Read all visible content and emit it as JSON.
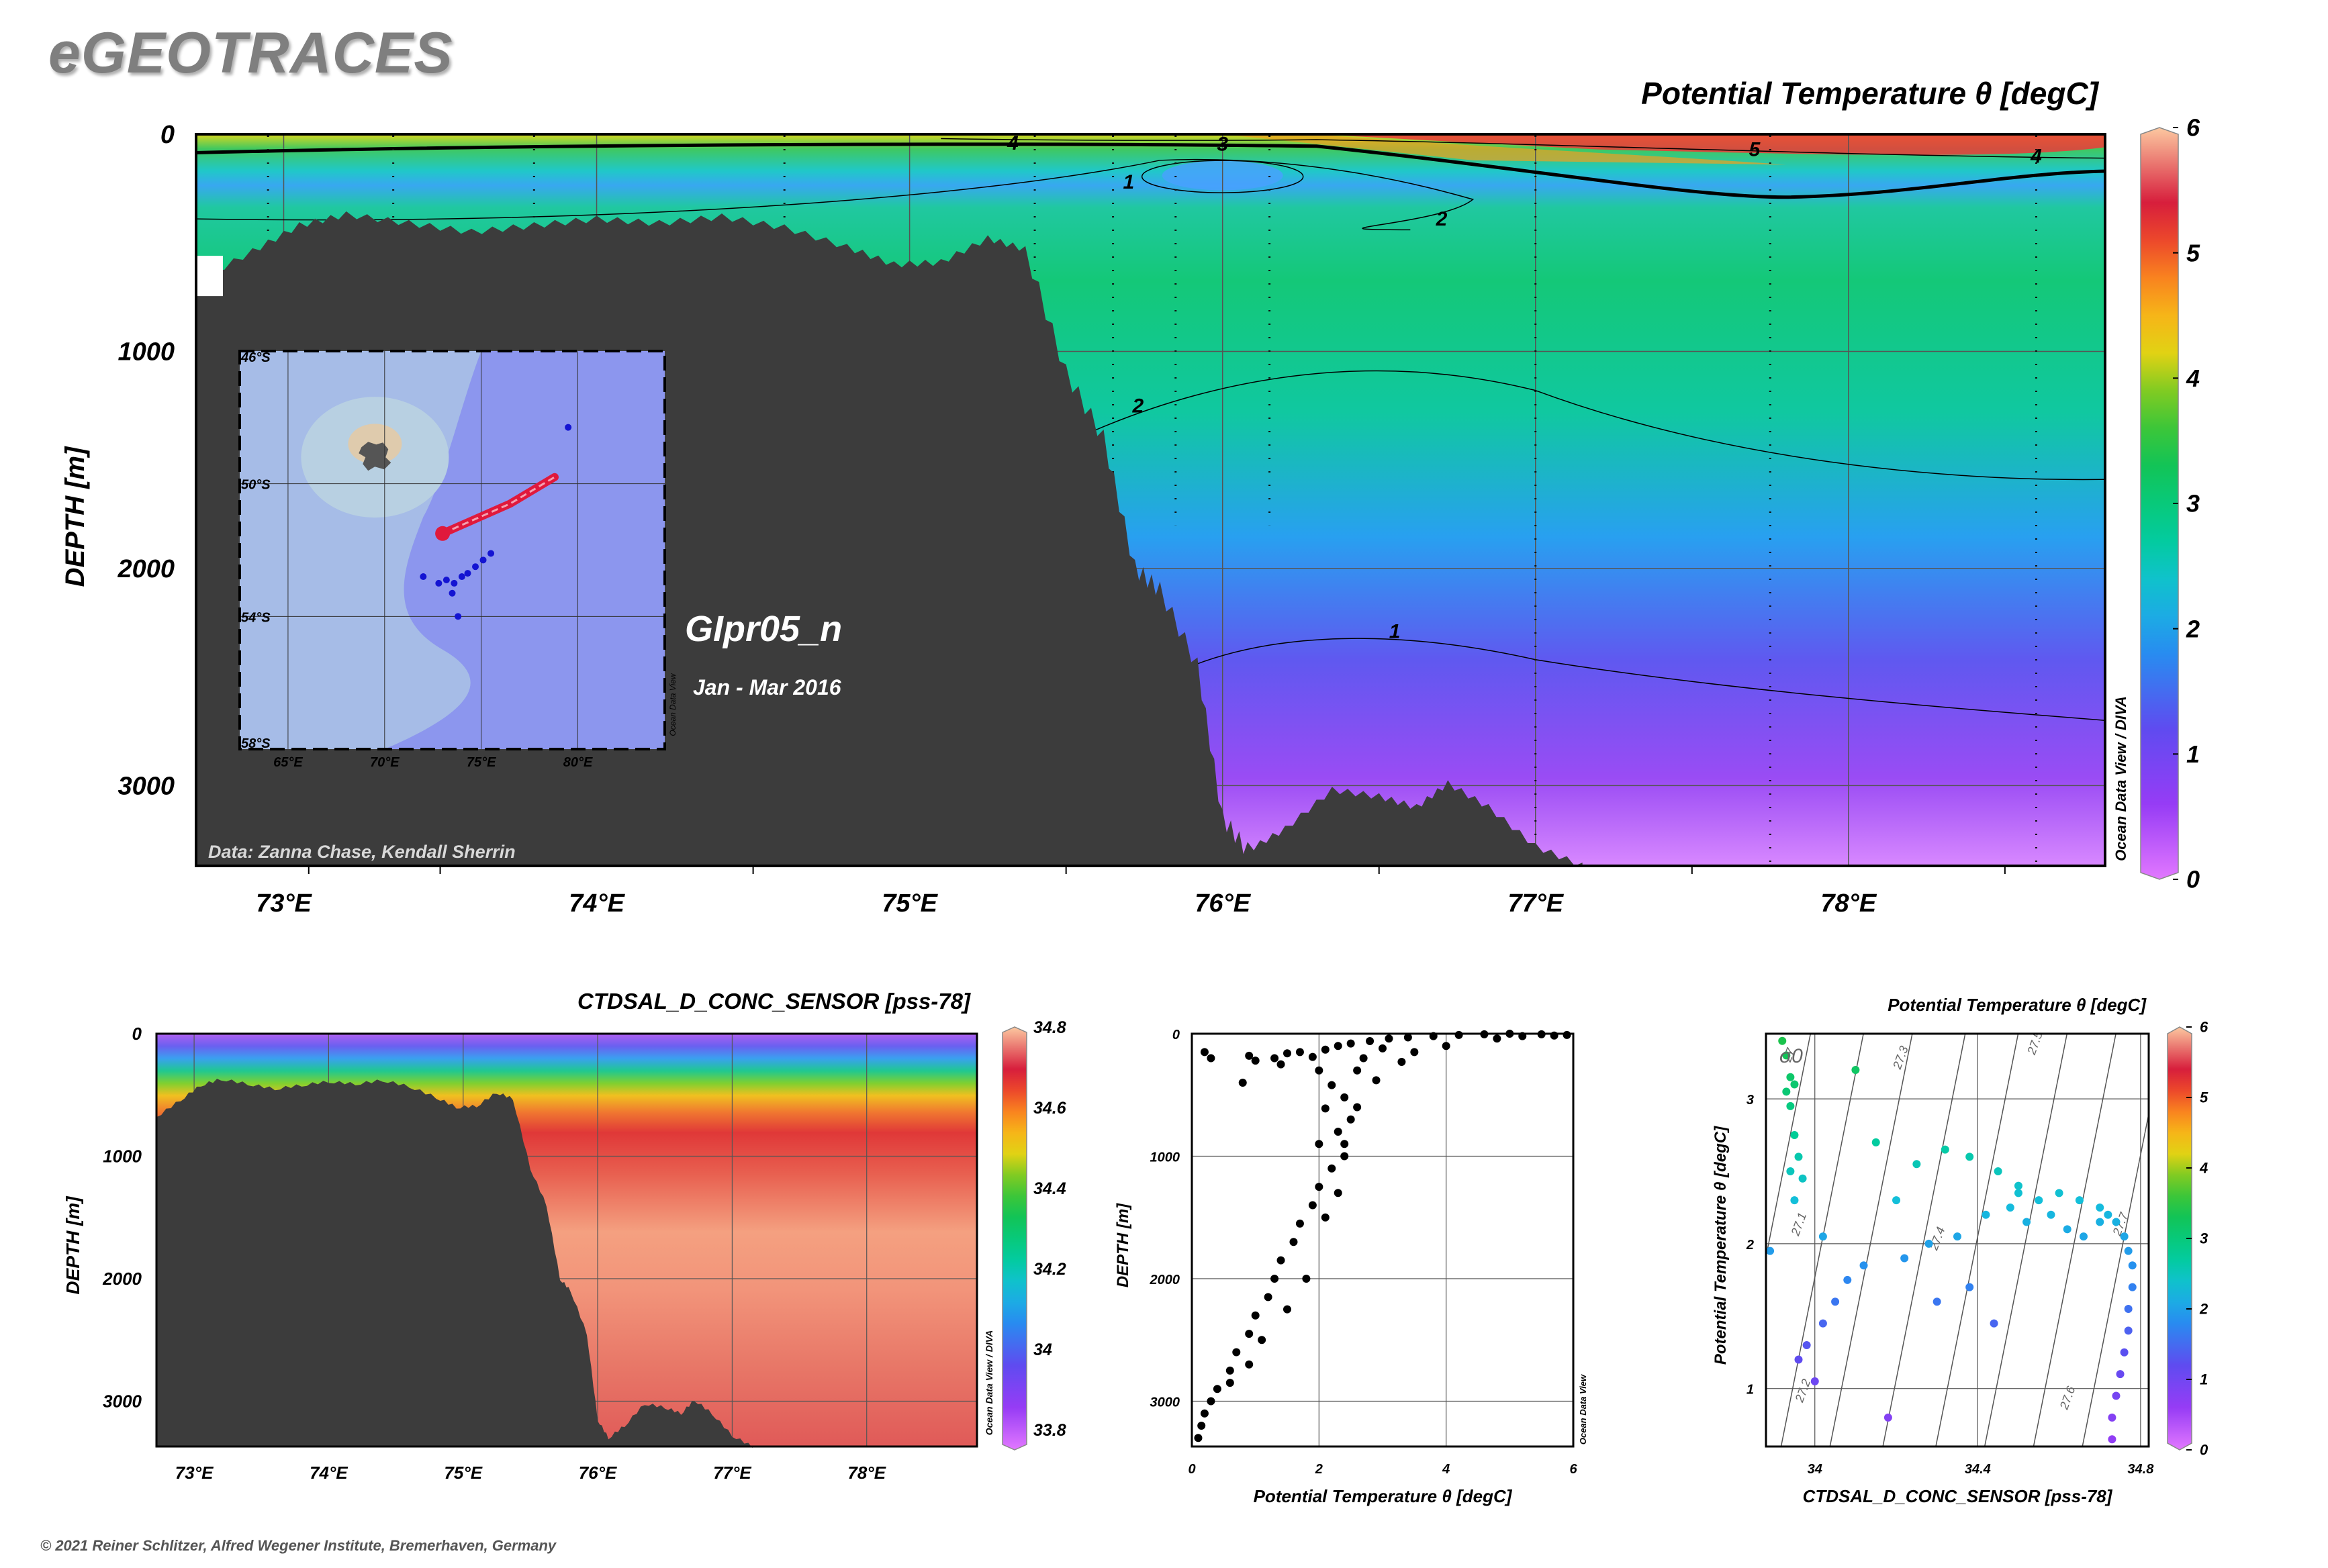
{
  "brand": "eGEOTRACES",
  "copyright": "© 2021 Reiner Schlitzer, Alfred Wegener Institute, Bremerhaven, Germany",
  "colors": {
    "seafloor": "#3c3c3c",
    "section_line": "#e0193c",
    "stations": "#1414d2",
    "map_ocean": "#8c96ee"
  },
  "chart_data": [
    {
      "type": "heatmap",
      "title": "Potential Temperature θ [degC]",
      "ylabel": "DEPTH [m]",
      "xlabel": "",
      "x_ticks": [
        "73°E",
        "74°E",
        "75°E",
        "76°E",
        "77°E",
        "78°E"
      ],
      "x_tick_values": [
        73,
        74,
        75,
        76,
        77,
        78
      ],
      "xlim": [
        72.72,
        78.82
      ],
      "y_ticks": [
        "0",
        "1000",
        "2000",
        "3000"
      ],
      "y_tick_values": [
        0,
        1000,
        2000,
        3000
      ],
      "ylim": [
        3370,
        0
      ],
      "colorbar": {
        "ticks": [
          "0",
          "1",
          "2",
          "3",
          "4",
          "5",
          "6"
        ],
        "values": [
          0,
          1,
          2,
          3,
          4,
          5,
          6
        ],
        "range": [
          0,
          6
        ]
      },
      "contour_labels": [
        "4",
        "3",
        "1",
        "2",
        "2",
        "1",
        "5",
        "4"
      ],
      "annotation_section": "GIpr05_n",
      "annotation_period": "Jan - Mar 2016",
      "data_credit": "Data: Zanna Chase, Kendall Sherrin",
      "side_label": "Ocean Data View / DIVA",
      "station_longitudes": [
        72.95,
        73.35,
        73.8,
        74.6,
        75.4,
        75.65,
        75.85,
        76.15,
        77.0,
        77.75,
        78.6
      ],
      "bathymetry": [
        [
          72.72,
          680
        ],
        [
          72.9,
          540
        ],
        [
          73.05,
          420
        ],
        [
          73.2,
          370
        ],
        [
          73.4,
          410
        ],
        [
          73.6,
          450
        ],
        [
          73.8,
          420
        ],
        [
          74.0,
          390
        ],
        [
          74.2,
          410
        ],
        [
          74.4,
          380
        ],
        [
          74.6,
          430
        ],
        [
          74.8,
          520
        ],
        [
          74.95,
          600
        ],
        [
          75.1,
          590
        ],
        [
          75.25,
          480
        ],
        [
          75.37,
          530
        ],
        [
          75.5,
          1100
        ],
        [
          75.62,
          1400
        ],
        [
          75.72,
          2000
        ],
        [
          75.8,
          2100
        ],
        [
          75.92,
          2450
        ],
        [
          76.0,
          3150
        ],
        [
          76.08,
          3300
        ],
        [
          76.2,
          3200
        ],
        [
          76.35,
          3020
        ],
        [
          76.5,
          3050
        ],
        [
          76.62,
          3100
        ],
        [
          76.72,
          2990
        ],
        [
          76.85,
          3100
        ],
        [
          77.0,
          3280
        ],
        [
          77.15,
          3370
        ]
      ]
    },
    {
      "type": "heatmap",
      "title": "CTDSAL_D_CONC_SENSOR [pss-78]",
      "ylabel": "DEPTH [m]",
      "xlabel": "",
      "x_ticks": [
        "73°E",
        "74°E",
        "75°E",
        "76°E",
        "77°E",
        "78°E"
      ],
      "x_tick_values": [
        73,
        74,
        75,
        76,
        77,
        78
      ],
      "xlim": [
        72.72,
        78.82
      ],
      "y_ticks": [
        "0",
        "1000",
        "2000",
        "3000"
      ],
      "y_tick_values": [
        0,
        1000,
        2000,
        3000
      ],
      "ylim": [
        3370,
        0
      ],
      "colorbar": {
        "ticks": [
          "33.8",
          "34",
          "34.2",
          "34.4",
          "34.6",
          "34.8"
        ],
        "values": [
          33.8,
          34.0,
          34.2,
          34.4,
          34.6,
          34.8
        ],
        "range": [
          33.75,
          34.8
        ]
      },
      "side_label": "Ocean Data View / DIVA"
    },
    {
      "type": "scatter",
      "xlabel": "Potential Temperature θ [degC]",
      "ylabel": "DEPTH [m]",
      "x_ticks": [
        "0",
        "2",
        "4",
        "6"
      ],
      "x_tick_values": [
        0,
        2,
        4,
        6
      ],
      "xlim": [
        0,
        6
      ],
      "y_ticks": [
        "0",
        "1000",
        "2000",
        "3000"
      ],
      "y_tick_values": [
        0,
        1000,
        2000,
        3000
      ],
      "ylim": [
        3370,
        0
      ],
      "side_label": "Ocean Data View",
      "points": [
        [
          0.2,
          150
        ],
        [
          0.3,
          200
        ],
        [
          0.9,
          180
        ],
        [
          1.0,
          220
        ],
        [
          1.3,
          200
        ],
        [
          1.5,
          160
        ],
        [
          1.7,
          150
        ],
        [
          1.9,
          190
        ],
        [
          2.1,
          130
        ],
        [
          2.3,
          100
        ],
        [
          2.5,
          80
        ],
        [
          2.8,
          60
        ],
        [
          3.1,
          40
        ],
        [
          3.4,
          30
        ],
        [
          3.8,
          20
        ],
        [
          4.2,
          10
        ],
        [
          4.6,
          5
        ],
        [
          5.0,
          0
        ],
        [
          5.5,
          5
        ],
        [
          5.9,
          10
        ],
        [
          3.0,
          120
        ],
        [
          3.3,
          230
        ],
        [
          2.9,
          380
        ],
        [
          2.6,
          300
        ],
        [
          2.2,
          420
        ],
        [
          2.4,
          520
        ],
        [
          2.1,
          610
        ],
        [
          2.5,
          700
        ],
        [
          2.3,
          800
        ],
        [
          2.0,
          900
        ],
        [
          2.4,
          1000
        ],
        [
          2.2,
          1100
        ],
        [
          2.0,
          1250
        ],
        [
          1.9,
          1400
        ],
        [
          1.7,
          1550
        ],
        [
          1.6,
          1700
        ],
        [
          1.4,
          1850
        ],
        [
          1.3,
          2000
        ],
        [
          1.2,
          2150
        ],
        [
          1.0,
          2300
        ],
        [
          0.9,
          2450
        ],
        [
          0.7,
          2600
        ],
        [
          0.6,
          2750
        ],
        [
          0.4,
          2900
        ],
        [
          0.3,
          3000
        ],
        [
          0.2,
          3100
        ],
        [
          0.15,
          3200
        ],
        [
          0.1,
          3300
        ],
        [
          0.6,
          2850
        ],
        [
          0.9,
          2700
        ],
        [
          1.1,
          2500
        ],
        [
          1.5,
          2250
        ],
        [
          1.8,
          2000
        ],
        [
          2.1,
          1500
        ],
        [
          2.3,
          1300
        ],
        [
          2.4,
          900
        ],
        [
          2.6,
          600
        ],
        [
          2.0,
          300
        ],
        [
          1.4,
          250
        ],
        [
          0.8,
          400
        ],
        [
          2.7,
          200
        ],
        [
          3.5,
          150
        ],
        [
          4.0,
          100
        ],
        [
          4.8,
          40
        ],
        [
          5.2,
          20
        ],
        [
          5.7,
          15
        ]
      ]
    },
    {
      "type": "scatter",
      "title": "Potential Temperature θ [degC]",
      "xlabel": "CTDSAL_D_CONC_SENSOR [pss-78]",
      "ylabel": "Potential Temperature θ [degC]",
      "x_ticks": [
        "34",
        "34.4",
        "34.8"
      ],
      "x_tick_values": [
        34.0,
        34.4,
        34.8
      ],
      "xlim": [
        33.88,
        34.82
      ],
      "y_ticks": [
        "1",
        "2",
        "3"
      ],
      "y_tick_values": [
        1,
        2,
        3
      ],
      "ylim": [
        0.6,
        3.45
      ],
      "density_label": "σ0",
      "isopycnal_labels": [
        "27",
        "27.1",
        "27.2",
        "27.3",
        "27.4",
        "27.5",
        "27.6",
        "27.7"
      ],
      "colorbar": {
        "ticks": [
          "0",
          "1",
          "2",
          "3",
          "4",
          "5",
          "6"
        ],
        "values": [
          0,
          1,
          2,
          3,
          4,
          5,
          6
        ],
        "range": [
          0,
          6
        ]
      },
      "points": [
        [
          33.92,
          3.4
        ],
        [
          33.93,
          3.3
        ],
        [
          33.94,
          3.15
        ],
        [
          33.95,
          3.1
        ],
        [
          33.93,
          3.05
        ],
        [
          33.94,
          2.95
        ],
        [
          33.95,
          2.75
        ],
        [
          33.96,
          2.6
        ],
        [
          33.94,
          2.5
        ],
        [
          33.97,
          2.45
        ],
        [
          33.95,
          2.3
        ],
        [
          34.1,
          3.2
        ],
        [
          34.15,
          2.7
        ],
        [
          34.25,
          2.55
        ],
        [
          34.32,
          2.65
        ],
        [
          34.38,
          2.6
        ],
        [
          34.45,
          2.5
        ],
        [
          34.5,
          2.35
        ],
        [
          34.55,
          2.3
        ],
        [
          34.6,
          2.35
        ],
        [
          34.65,
          2.3
        ],
        [
          34.7,
          2.25
        ],
        [
          34.72,
          2.2
        ],
        [
          34.74,
          2.15
        ],
        [
          34.76,
          2.05
        ],
        [
          34.77,
          1.95
        ],
        [
          34.78,
          1.85
        ],
        [
          34.78,
          1.7
        ],
        [
          34.77,
          1.55
        ],
        [
          34.77,
          1.4
        ],
        [
          34.76,
          1.25
        ],
        [
          34.75,
          1.1
        ],
        [
          34.74,
          0.95
        ],
        [
          34.73,
          0.8
        ],
        [
          34.73,
          0.65
        ],
        [
          34.42,
          2.2
        ],
        [
          34.48,
          2.25
        ],
        [
          34.52,
          2.15
        ],
        [
          34.58,
          2.2
        ],
        [
          34.62,
          2.1
        ],
        [
          34.35,
          2.05
        ],
        [
          34.28,
          2.0
        ],
        [
          34.22,
          1.9
        ],
        [
          34.12,
          1.85
        ],
        [
          34.08,
          1.75
        ],
        [
          34.05,
          1.6
        ],
        [
          34.02,
          1.45
        ],
        [
          33.98,
          1.3
        ],
        [
          33.96,
          1.2
        ],
        [
          34.0,
          1.05
        ],
        [
          34.18,
          0.8
        ],
        [
          33.89,
          1.95
        ],
        [
          34.02,
          2.05
        ],
        [
          34.2,
          2.3
        ],
        [
          34.38,
          1.7
        ],
        [
          34.44,
          1.45
        ],
        [
          34.3,
          1.6
        ],
        [
          34.66,
          2.05
        ],
        [
          34.7,
          2.15
        ],
        [
          34.5,
          2.4
        ]
      ]
    }
  ],
  "inset_map": {
    "lat_labels": [
      "46°S",
      "50°S",
      "54°S",
      "58°S"
    ],
    "lon_labels": [
      "65°E",
      "70°E",
      "75°E",
      "80°E"
    ],
    "lon_range": [
      62.5,
      84.5
    ],
    "lat_range": [
      -58,
      -46
    ],
    "side_label": "Ocean Data View",
    "section_track": [
      [
        73.0,
        -51.5
      ],
      [
        76.5,
        -50.6
      ],
      [
        78.8,
        -49.8
      ]
    ],
    "section_start": [
      73.0,
      -51.5
    ],
    "stations": [
      [
        79.5,
        -48.3
      ],
      [
        72.0,
        -52.8
      ],
      [
        73.2,
        -52.9
      ],
      [
        73.6,
        -53.0
      ],
      [
        74.0,
        -52.8
      ],
      [
        74.3,
        -52.7
      ],
      [
        74.7,
        -52.5
      ],
      [
        75.1,
        -52.3
      ],
      [
        75.5,
        -52.1
      ],
      [
        73.5,
        -53.3
      ],
      [
        73.8,
        -54.0
      ],
      [
        72.8,
        -53.0
      ]
    ],
    "island_center": [
      69.5,
      -49.3
    ]
  }
}
